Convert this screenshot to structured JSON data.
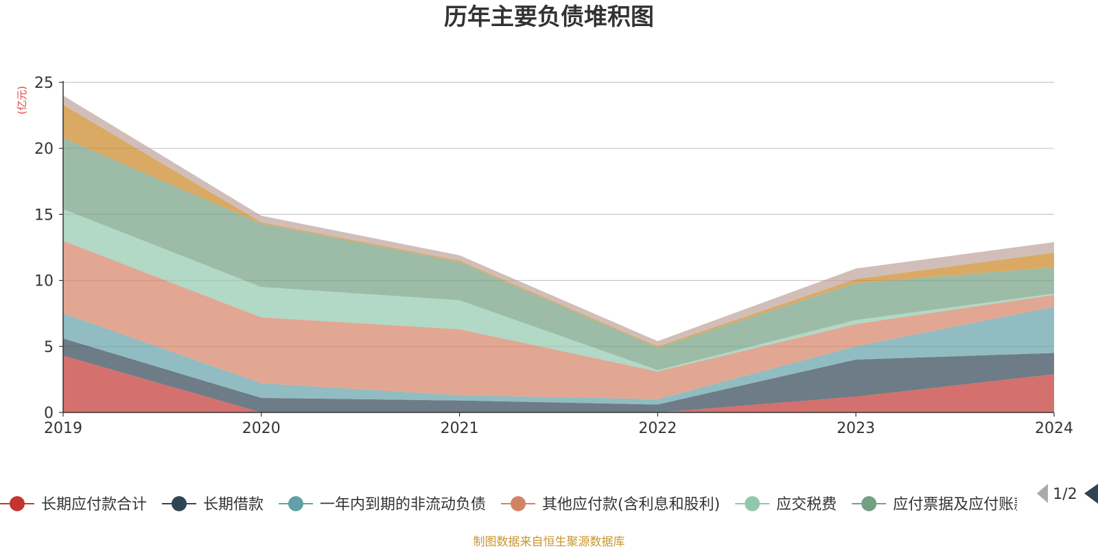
{
  "chart_data": {
    "type": "area",
    "stacked": true,
    "title": "历年主要负债堆积图",
    "unit_label": "(亿元)",
    "x": [
      "2019",
      "2020",
      "2021",
      "2022",
      "2023",
      "2024"
    ],
    "ylim": [
      0,
      25
    ],
    "yticks": [
      "0",
      "5",
      "10",
      "15",
      "20",
      "25"
    ],
    "grid": true,
    "series": [
      {
        "name": "长期应付款合计",
        "color": "#c23531",
        "values": [
          4.3,
          0.0,
          0.0,
          0.0,
          1.2,
          2.9
        ]
      },
      {
        "name": "长期借款",
        "color": "#2f4554",
        "values": [
          1.3,
          1.1,
          0.9,
          0.6,
          2.8,
          1.6
        ]
      },
      {
        "name": "一年内到期的非流动负债",
        "color": "#61a0a8",
        "values": [
          1.9,
          1.1,
          0.4,
          0.4,
          1.0,
          3.5
        ]
      },
      {
        "name": "其他应付款(含利息和股利)",
        "color": "#d48265",
        "values": [
          5.5,
          5.0,
          5.0,
          2.1,
          1.7,
          0.9
        ]
      },
      {
        "name": "应交税费",
        "color": "#91c7ae",
        "values": [
          2.4,
          2.3,
          2.2,
          0.1,
          0.3,
          0.1
        ]
      },
      {
        "name": "应付票据及应付账款",
        "color": "#749f83",
        "values": [
          5.4,
          4.8,
          2.9,
          1.7,
          2.8,
          2.0
        ]
      },
      {
        "name": "",
        "color": "#ca8622",
        "values": [
          2.5,
          0.1,
          0.1,
          0.1,
          0.3,
          1.1
        ]
      },
      {
        "name": "",
        "color": "#bda29a",
        "values": [
          0.7,
          0.5,
          0.4,
          0.4,
          0.8,
          0.8
        ]
      }
    ]
  },
  "legend": {
    "pager_text": "1/2",
    "prev_icon": "triangle-left-icon",
    "next_icon": "triangle-right-icon",
    "prev_color": "#aaaaaa",
    "next_color": "#2f4554"
  },
  "source_text": "制图数据来自恒生聚源数据库"
}
